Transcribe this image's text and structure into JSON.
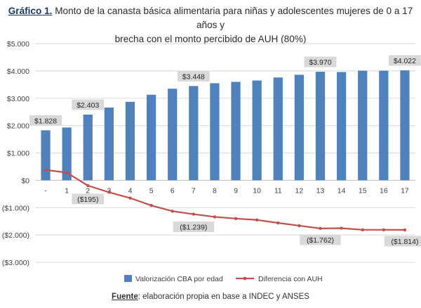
{
  "title": {
    "prefix": "Gráfico 1.",
    "line1": "Monto de la canasta básica alimentaria para niñas y adolescentes mujeres de 0 a 17 años y",
    "line2": "brecha con el monto percibido de AUH (80%)"
  },
  "footer": {
    "label": "Fuente",
    "text": ": elaboración propia en base a INDEC y ANSES"
  },
  "colors": {
    "bar": "#4f81bd",
    "line": "#c0504d",
    "grid": "#d9d9d9",
    "label_bg": "#d9d9d9"
  },
  "chart_data": {
    "type": "bar",
    "categories": [
      "-",
      "1",
      "2",
      "3",
      "4",
      "5",
      "6",
      "7",
      "8",
      "9",
      "10",
      "11",
      "12",
      "13",
      "14",
      "15",
      "16",
      "17"
    ],
    "y_ticks": [
      "$5.000",
      "$4.000",
      "$3.000",
      "$2.000",
      "$1.000",
      "$0",
      "($1.000)",
      "($2.000)",
      "($3.000)"
    ],
    "ylim": [
      -3000,
      5000
    ],
    "grid": true,
    "legend_position": "bottom",
    "series": [
      {
        "name": "Valorización CBA por edad",
        "type": "bar",
        "values": [
          1828,
          1930,
          2403,
          2660,
          2870,
          3130,
          3350,
          3448,
          3550,
          3600,
          3650,
          3760,
          3860,
          3970,
          3960,
          4010,
          4010,
          4022
        ]
      },
      {
        "name": "Diferencia con AUH",
        "type": "line",
        "values": [
          380,
          280,
          -195,
          -440,
          -650,
          -920,
          -1130,
          -1239,
          -1340,
          -1400,
          -1450,
          -1560,
          -1660,
          -1762,
          -1752,
          -1812,
          -1812,
          -1814
        ]
      }
    ],
    "annotations": [
      {
        "series": 0,
        "index": 0,
        "text": "$1.828"
      },
      {
        "series": 0,
        "index": 2,
        "text": "$2.403"
      },
      {
        "series": 0,
        "index": 7,
        "text": "$3.448"
      },
      {
        "series": 0,
        "index": 13,
        "text": "$3.970"
      },
      {
        "series": 0,
        "index": 17,
        "text": "$4.022"
      },
      {
        "series": 1,
        "index": 2,
        "text": "($195)"
      },
      {
        "series": 1,
        "index": 7,
        "text": "($1.239)"
      },
      {
        "series": 1,
        "index": 13,
        "text": "($1.762)"
      },
      {
        "series": 1,
        "index": 17,
        "text": "($1.814)"
      }
    ]
  }
}
